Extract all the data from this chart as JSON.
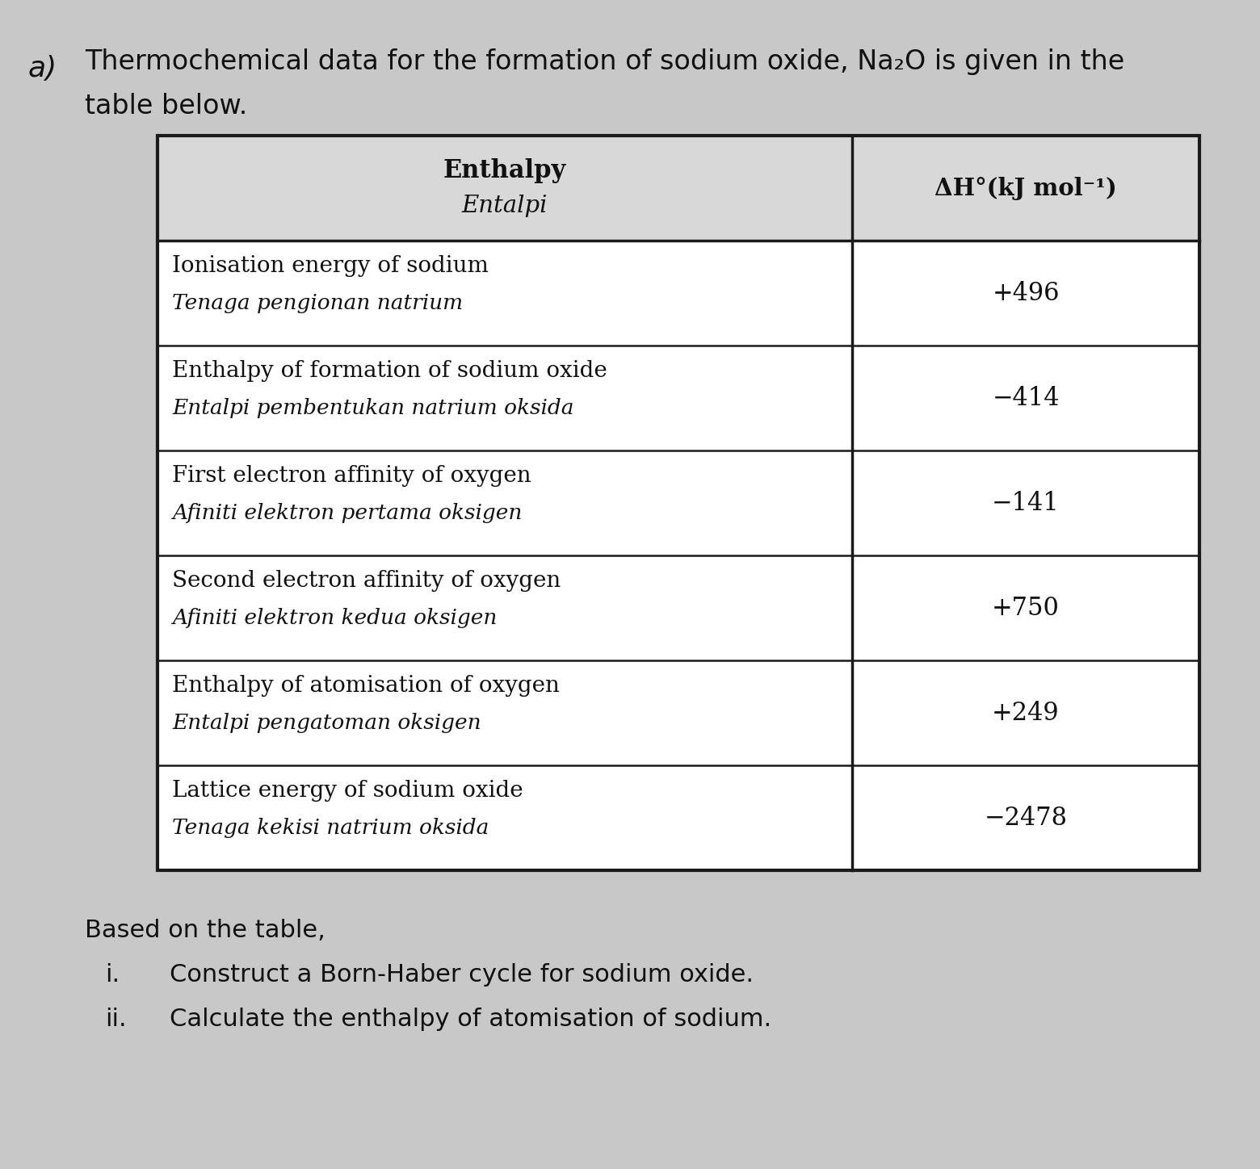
{
  "title_letter": "a)",
  "title_text_line1": "Thermochemical data for the formation of sodium oxide, Na₂O is given in the",
  "title_text_line2": "table below.",
  "col1_header_line1": "Enthalpy",
  "col1_header_line2": "Entalpi",
  "col2_header": "ΔH°(kJ mol⁻¹)",
  "rows": [
    {
      "line1": "Ionisation energy of sodium",
      "line2": "Tenaga pengionan natrium",
      "value": "+496"
    },
    {
      "line1": "Enthalpy of formation of sodium oxide",
      "line2": "Entalpi pembentukan natrium oksida",
      "value": "−414"
    },
    {
      "line1": "First electron affinity of oxygen",
      "line2": "Afiniti elektron pertama oksigen",
      "value": "−141"
    },
    {
      "line1": "Second electron affinity of oxygen",
      "line2": "Afiniti elektron kedua oksigen",
      "value": "+750"
    },
    {
      "line1": "Enthalpy of atomisation of oxygen",
      "line2": "Entalpi pengatoman oksigen",
      "value": "+249"
    },
    {
      "line1": "Lattice energy of sodium oxide",
      "line2": "Tenaga kekisi natrium oksida",
      "value": "−2478"
    }
  ],
  "footer_based": "Based on the table,",
  "footer_i_label": "i.",
  "footer_i_text": "Construct a Born-Haber cycle for sodium oxide.",
  "footer_ii_label": "ii.",
  "footer_ii_text": "Calculate the enthalpy of atomisation of sodium.",
  "bg_color": "#c8c8c8",
  "table_white": "#ffffff",
  "table_header_bg": "#d8d8d8",
  "text_color": "#111111",
  "border_color": "#1a1a1a",
  "fig_width": 15.6,
  "fig_height": 14.48,
  "dpi": 100
}
